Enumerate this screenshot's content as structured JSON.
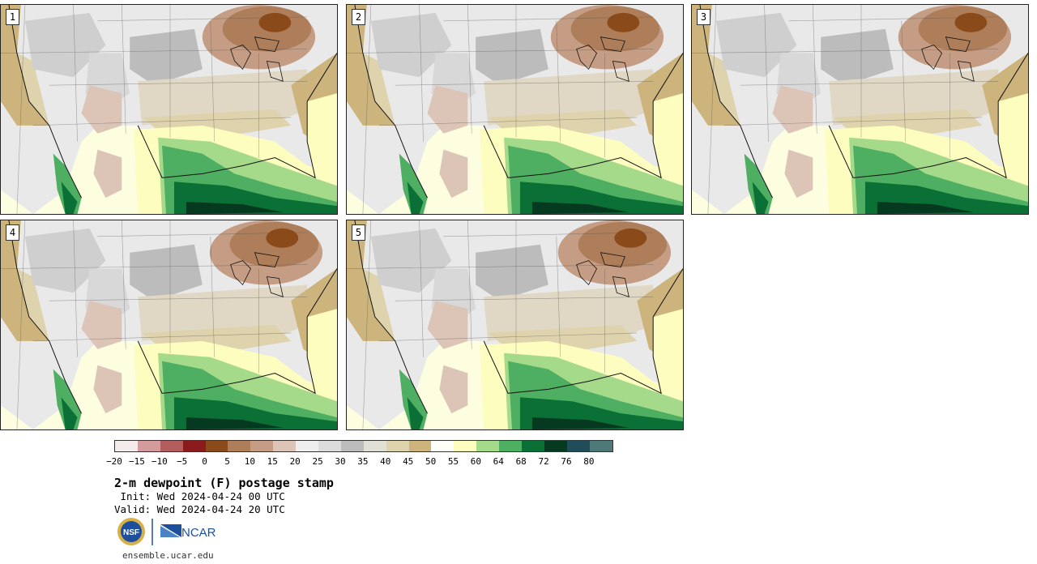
{
  "panels": [
    {
      "label": "1"
    },
    {
      "label": "2"
    },
    {
      "label": "3"
    },
    {
      "label": "4"
    },
    {
      "label": "5"
    }
  ],
  "colorbar": {
    "colors": [
      "#f4eceb",
      "#d39b9c",
      "#b45d5e",
      "#8b1a1c",
      "#8a4a1a",
      "#ae7d5a",
      "#c49d84",
      "#dcc5b7",
      "#eeeeee",
      "#dcdcdc",
      "#bcbcbc",
      "#e0e0d4",
      "#ded3ac",
      "#ccb47c",
      "#fffffa",
      "#fdfdc0",
      "#a6da8b",
      "#4eae62",
      "#0a7035",
      "#063a20",
      "#204d57",
      "#4f7979"
    ],
    "ticks": [
      "−20",
      "−15",
      "−10",
      "−5",
      "0",
      "5",
      "10",
      "15",
      "20",
      "25",
      "30",
      "35",
      "40",
      "45",
      "50",
      "55",
      "60",
      "64",
      "68",
      "72",
      "76",
      "80"
    ]
  },
  "title": "2-m dewpoint (F) postage stamp",
  "init": " Init: Wed 2024-04-24 00 UTC",
  "valid": "Valid: Wed 2024-04-24 20 UTC",
  "logos": {
    "left": "NSF",
    "right": "NCAR"
  },
  "site": "ensemble.ucar.edu"
}
